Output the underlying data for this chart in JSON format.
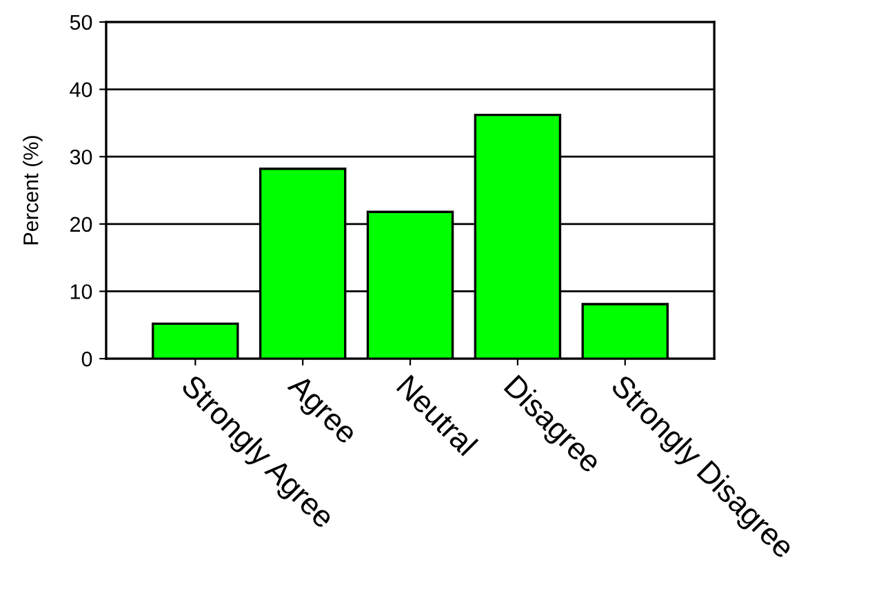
{
  "chart_data": {
    "type": "bar",
    "ylabel": "Percent (%)",
    "categories": [
      "Strongly Agree",
      "Agree",
      "Neutral",
      "Disagree",
      "Strongly Disagree"
    ],
    "values": [
      5.2,
      28.2,
      21.8,
      36.2,
      8.1
    ],
    "color": "#00ff00",
    "ylim": [
      0,
      50
    ],
    "yticks": [
      0,
      10,
      20,
      30,
      40,
      50
    ],
    "grid": "y"
  }
}
